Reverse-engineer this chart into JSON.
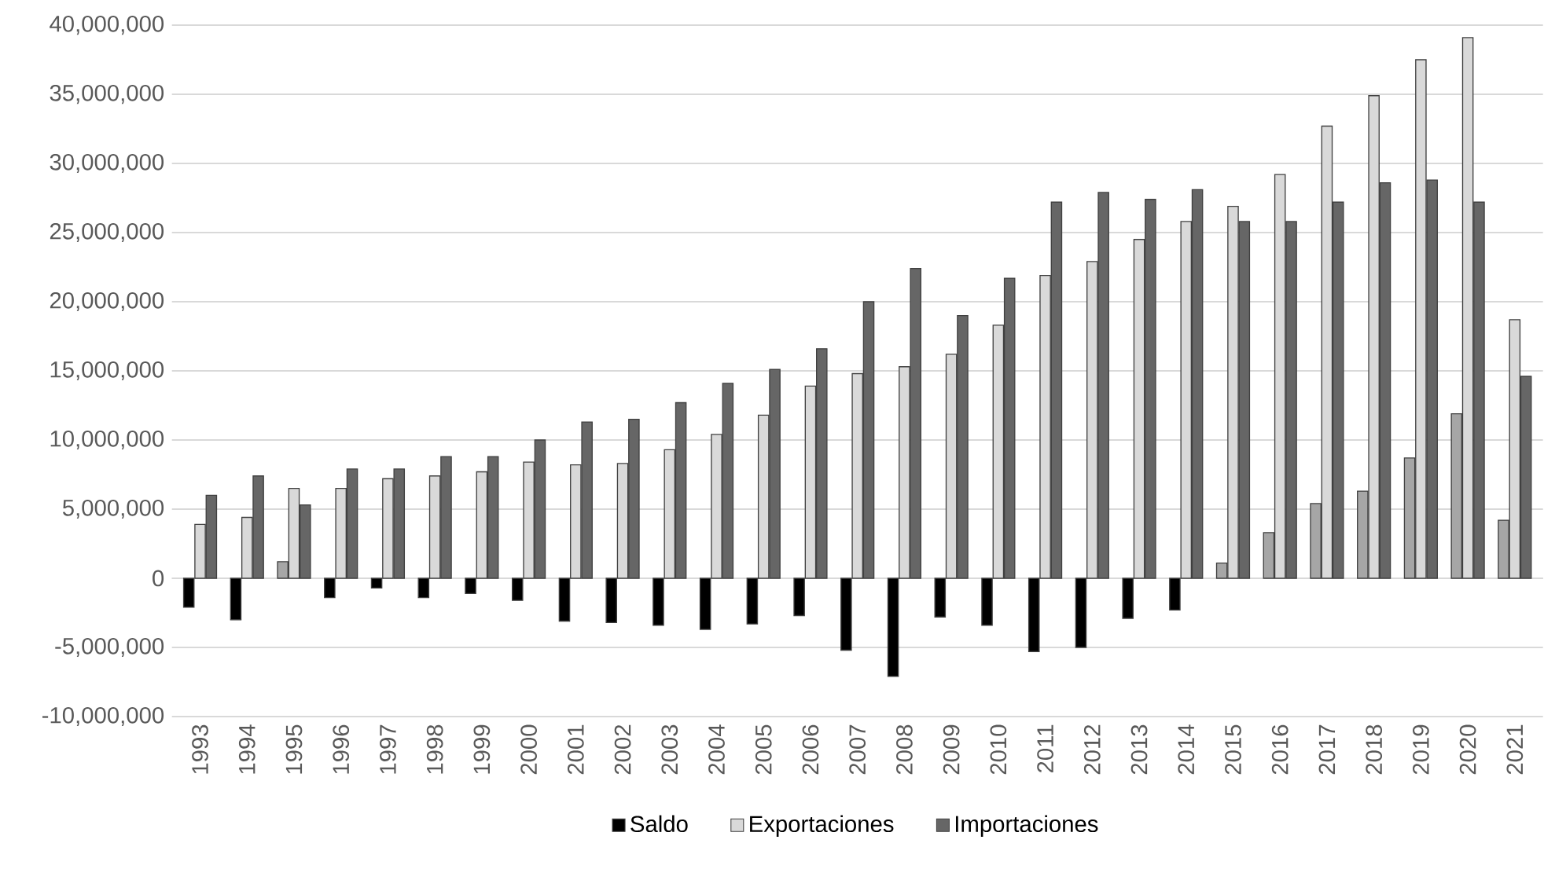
{
  "chart_data": {
    "type": "bar",
    "categories": [
      "1993",
      "1994",
      "1995",
      "1996",
      "1997",
      "1998",
      "1999",
      "2000",
      "2001",
      "2002",
      "2003",
      "2004",
      "2005",
      "2006",
      "2007",
      "2008",
      "2009",
      "2010",
      "2011",
      "2012",
      "2013",
      "2014",
      "2015",
      "2016",
      "2017",
      "2018",
      "2019",
      "2020",
      "2021"
    ],
    "series": [
      {
        "name": "Saldo",
        "color": "#000000",
        "colors": [
          "#000000",
          "#000000",
          "#a6a6a6",
          "#000000",
          "#000000",
          "#000000",
          "#000000",
          "#000000",
          "#000000",
          "#000000",
          "#000000",
          "#000000",
          "#000000",
          "#000000",
          "#000000",
          "#000000",
          "#000000",
          "#000000",
          "#000000",
          "#000000",
          "#000000",
          "#000000",
          "#a6a6a6",
          "#a6a6a6",
          "#a6a6a6",
          "#a6a6a6",
          "#a6a6a6",
          "#a6a6a6",
          "#a6a6a6"
        ],
        "values": [
          -2100000,
          -3000000,
          1200000,
          -1400000,
          -700000,
          -1400000,
          -1100000,
          -1600000,
          -3100000,
          -3200000,
          -3400000,
          -3700000,
          -3300000,
          -2700000,
          -5200000,
          -7100000,
          -2800000,
          -3400000,
          -5300000,
          -5000000,
          -2900000,
          -2300000,
          1100000,
          3300000,
          5400000,
          6300000,
          8700000,
          11900000,
          4200000
        ]
      },
      {
        "name": "Exportaciones",
        "color": "#d9d9d9",
        "values": [
          3900000,
          4400000,
          6500000,
          6500000,
          7200000,
          7400000,
          7700000,
          8400000,
          8200000,
          8300000,
          9300000,
          10400000,
          11800000,
          13900000,
          14800000,
          15300000,
          16200000,
          18300000,
          21900000,
          22900000,
          24500000,
          25800000,
          26900000,
          29200000,
          32700000,
          34900000,
          37500000,
          39100000,
          18700000
        ]
      },
      {
        "name": "Importaciones",
        "color": "#666666",
        "values": [
          6000000,
          7400000,
          5300000,
          7900000,
          7900000,
          8800000,
          8800000,
          10000000,
          11300000,
          11500000,
          12700000,
          14100000,
          15100000,
          16600000,
          20000000,
          22400000,
          19000000,
          21700000,
          27200000,
          27900000,
          27400000,
          28100000,
          25800000,
          25800000,
          27200000,
          28600000,
          28800000,
          27200000,
          14600000
        ]
      }
    ],
    "ylim": [
      -10000000,
      40000000
    ],
    "yticks": [
      {
        "value": -10000000,
        "label": "-10,000,000"
      },
      {
        "value": -5000000,
        "label": "-5,000,000"
      },
      0,
      {
        "value": 5000000,
        "label": "5,000,000"
      },
      {
        "value": 10000000,
        "label": "10,000,000"
      },
      {
        "value": 15000000,
        "label": "15,000,000"
      },
      {
        "value": 20000000,
        "label": "20,000,000"
      },
      {
        "value": 25000000,
        "label": "25,000,000"
      },
      {
        "value": 30000000,
        "label": "30,000,000"
      },
      {
        "value": 35000000,
        "label": "35,000,000"
      },
      {
        "value": 40000000,
        "label": "40,000,000"
      }
    ],
    "grid": "y",
    "legend": "bottom"
  }
}
